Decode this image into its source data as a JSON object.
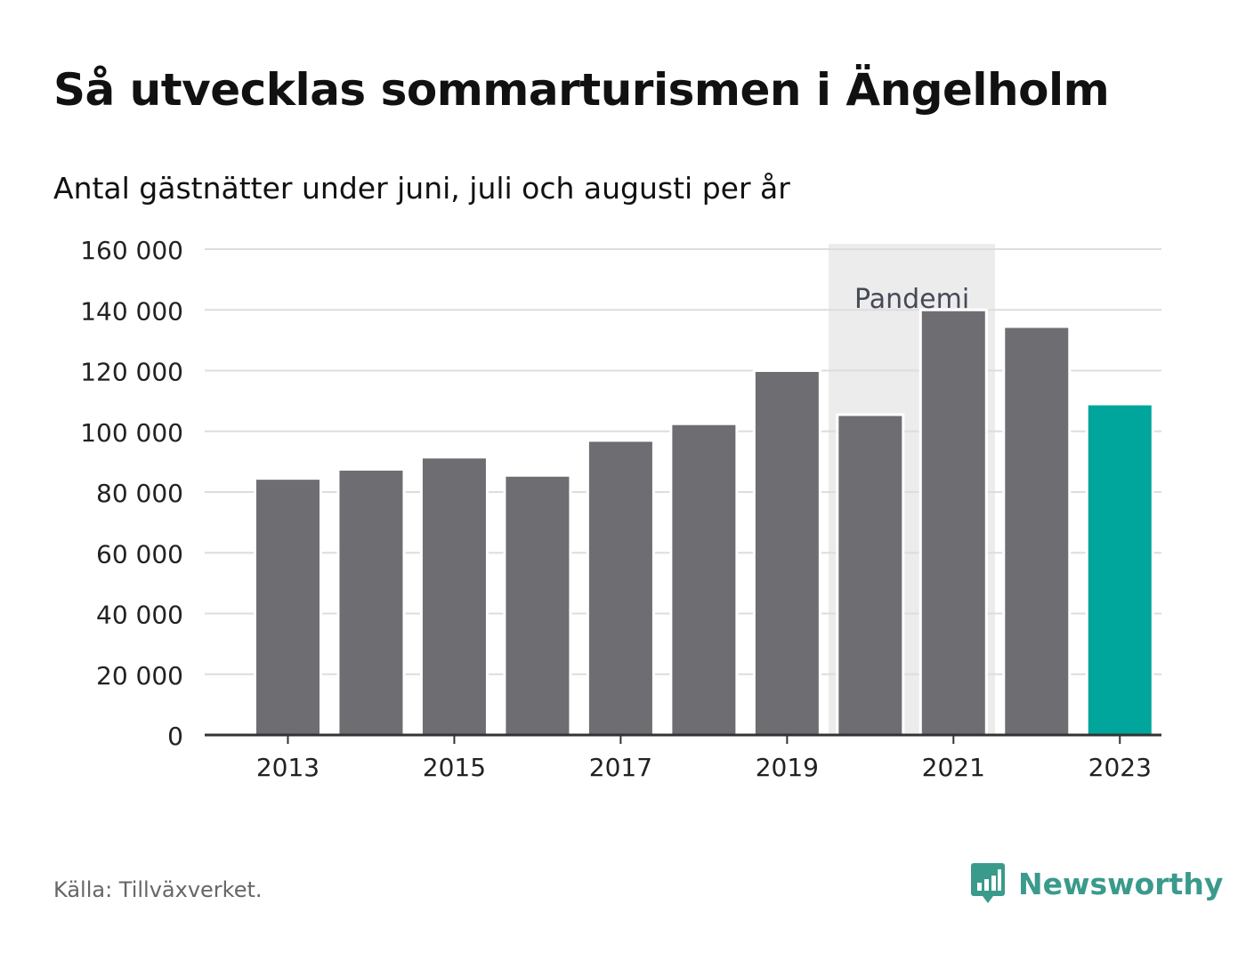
{
  "chart_data": {
    "type": "bar",
    "title": "Så utvecklas sommarturismen i Ängelholm",
    "subtitle": "Antal gästnätter under juni, juli och augusti per år",
    "categories": [
      "2013",
      "2014",
      "2015",
      "2016",
      "2017",
      "2018",
      "2019",
      "2020",
      "2021",
      "2022",
      "2023"
    ],
    "values": [
      84500,
      87500,
      91500,
      85500,
      97000,
      102500,
      120000,
      105500,
      140000,
      134500,
      109000
    ],
    "highlight_category": "2023",
    "ylim": [
      0,
      160000
    ],
    "yticks": [
      0,
      20000,
      40000,
      60000,
      80000,
      100000,
      120000,
      140000,
      160000
    ],
    "ytick_labels": [
      "0",
      "20 000",
      "40 000",
      "60 000",
      "80 000",
      "100 000",
      "120 000",
      "140 000",
      "160 000"
    ],
    "xtick_labels": [
      "2013",
      "2015",
      "2017",
      "2019",
      "2021",
      "2023"
    ],
    "annotation": {
      "label": "Pandemi",
      "from_category": "2020",
      "to_category": "2021"
    },
    "grid": true,
    "colors": {
      "bar": "#6d6d72",
      "highlight": "#00a59b",
      "annotation_band": "#ececec",
      "gridline": "#dddddd",
      "axis": "#333333"
    }
  },
  "source": "Källa: Tillväxverket.",
  "brand": {
    "name": "Newsworthy",
    "logo_icon": "newsworthy-chart-bubble-icon",
    "color": "#3a9a8c"
  }
}
